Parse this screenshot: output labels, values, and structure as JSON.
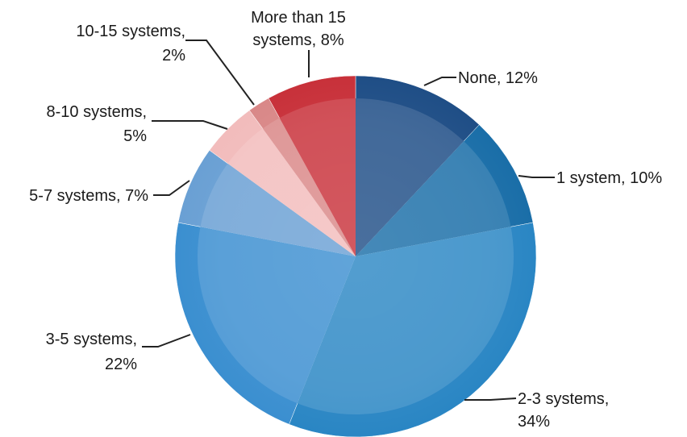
{
  "chart_data": {
    "type": "pie",
    "start_angle_deg": 0,
    "direction": "clockwise",
    "slices": [
      {
        "label_lines": [
          "None, 12%"
        ],
        "value": 12,
        "color": "#1f4e86"
      },
      {
        "label_lines": [
          "1 system, 10%"
        ],
        "value": 10,
        "color": "#1a6ea8"
      },
      {
        "label_lines": [
          "2-3 systems,",
          "34%"
        ],
        "value": 34,
        "color": "#2a86c4"
      },
      {
        "label_lines": [
          "3-5 systems,",
          "22%"
        ],
        "value": 22,
        "color": "#3b8fd0"
      },
      {
        "label_lines": [
          "5-7 systems, 7%"
        ],
        "value": 7,
        "color": "#6aa0d4"
      },
      {
        "label_lines": [
          "8-10 systems,",
          "5%"
        ],
        "value": 5,
        "color": "#f2bcbc"
      },
      {
        "label_lines": [
          "10-15 systems,",
          "2%"
        ],
        "value": 2,
        "color": "#d98888"
      },
      {
        "label_lines": [
          "More than 15",
          "systems, 8%"
        ],
        "value": 8,
        "color": "#c8313a"
      }
    ]
  }
}
